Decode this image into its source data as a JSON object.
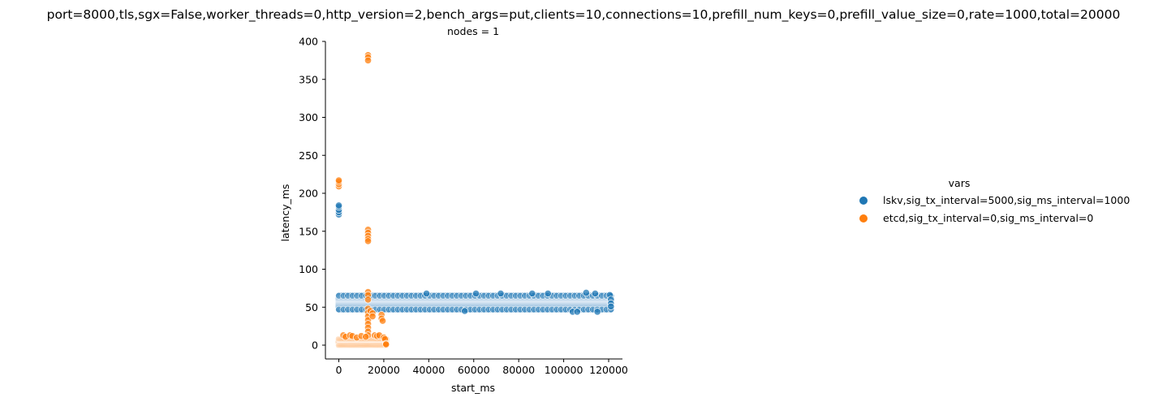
{
  "chart_data": {
    "type": "scatter",
    "title": "port=8000,tls,sgx=False,worker_threads=0,http_version=2,bench_args=put,clients=10,connections=10,prefill_num_keys=0,prefill_value_size=0,rate=1000,total=20000",
    "subtitle": "nodes = 1",
    "xlabel": "start_ms",
    "ylabel": "latency_ms",
    "xlim": [
      -5000,
      127000
    ],
    "ylim": [
      -12,
      400
    ],
    "xticks": [
      0,
      20000,
      40000,
      60000,
      80000,
      100000,
      120000
    ],
    "xtick_labels": [
      "0",
      "20000",
      "40000",
      "60000",
      "80000",
      "100000",
      "120000"
    ],
    "yticks": [
      0,
      50,
      100,
      150,
      200,
      250,
      300,
      350,
      400
    ],
    "ytick_labels": [
      "0",
      "50",
      "100",
      "150",
      "200",
      "250",
      "300",
      "350",
      "400"
    ],
    "grid": false,
    "legend": {
      "title": "vars",
      "placement": "right",
      "entries": [
        {
          "label": "lskv,sig_tx_interval=5000,sig_ms_interval=1000",
          "color": "#1f77b4"
        },
        {
          "label": "etcd,sig_tx_interval=0,sig_ms_interval=0",
          "color": "#ff7f0e"
        }
      ]
    },
    "series": [
      {
        "name": "lskv,sig_tx_interval=5000,sig_ms_interval=1000",
        "color": "#1f77b4",
        "band": {
          "x_start": 0,
          "x_end": 121000,
          "y_low": 47,
          "y_high": 65
        },
        "points": [
          [
            0,
            172
          ],
          [
            0,
            175
          ],
          [
            0,
            178
          ],
          [
            0,
            182
          ],
          [
            0,
            184
          ],
          [
            39000,
            68
          ],
          [
            61000,
            68
          ],
          [
            72000,
            68
          ],
          [
            86000,
            68
          ],
          [
            93000,
            68
          ],
          [
            110000,
            69
          ],
          [
            114000,
            68
          ],
          [
            120500,
            66
          ],
          [
            56000,
            45
          ],
          [
            104000,
            44
          ],
          [
            106000,
            44
          ],
          [
            115000,
            44
          ],
          [
            121000,
            60
          ],
          [
            121000,
            55
          ],
          [
            121000,
            51
          ]
        ]
      },
      {
        "name": "etcd,sig_tx_interval=0,sig_ms_interval=0",
        "color": "#ff7f0e",
        "band": {
          "x_start": 0,
          "x_end": 21000,
          "y_low": 0,
          "y_high": 8
        },
        "points": [
          [
            0,
            209
          ],
          [
            0,
            212
          ],
          [
            0,
            215
          ],
          [
            0,
            217
          ],
          [
            13000,
            382
          ],
          [
            13000,
            379
          ],
          [
            13000,
            375
          ],
          [
            13000,
            152
          ],
          [
            13000,
            148
          ],
          [
            13000,
            144
          ],
          [
            13000,
            140
          ],
          [
            13000,
            137
          ],
          [
            13000,
            70
          ],
          [
            13000,
            66
          ],
          [
            13000,
            60
          ],
          [
            13000,
            48
          ],
          [
            13000,
            43
          ],
          [
            13000,
            38
          ],
          [
            13000,
            33
          ],
          [
            13000,
            28
          ],
          [
            13000,
            23
          ],
          [
            13000,
            18
          ],
          [
            13000,
            13
          ],
          [
            14000,
            45
          ],
          [
            15000,
            42
          ],
          [
            15000,
            38
          ],
          [
            19000,
            40
          ],
          [
            19000,
            35
          ],
          [
            19500,
            32
          ],
          [
            2000,
            13
          ],
          [
            3000,
            11
          ],
          [
            5000,
            13
          ],
          [
            6000,
            12
          ],
          [
            8000,
            10
          ],
          [
            10000,
            12
          ],
          [
            12000,
            11
          ],
          [
            16000,
            13
          ],
          [
            17000,
            12
          ],
          [
            18000,
            13
          ],
          [
            20000,
            10
          ],
          [
            20500,
            8
          ],
          [
            21000,
            2
          ],
          [
            21000,
            1
          ]
        ]
      }
    ]
  }
}
